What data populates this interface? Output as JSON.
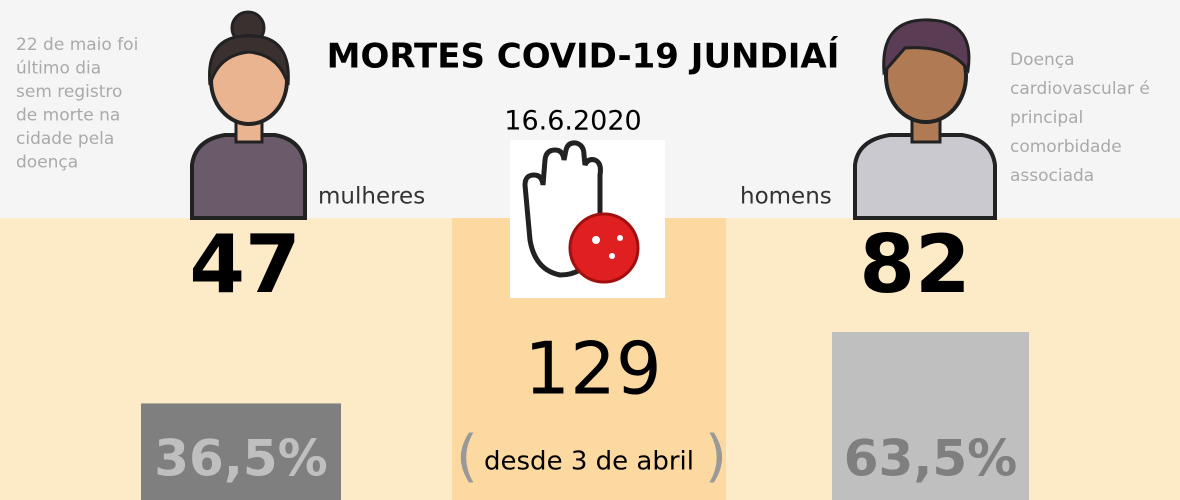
{
  "title": "MORTES COVID-19 JUNDIAÍ",
  "date": "16.6.2020",
  "note_left": [
    "22 de maio foi",
    "último dia",
    "sem registro",
    "de morte na",
    "cidade pela",
    "doença"
  ],
  "note_right": [
    "Doença",
    "cardiovascular é",
    "principal",
    "comorbidade",
    "associada"
  ],
  "women": {
    "label": "mulheres",
    "count": 47
  },
  "men": {
    "label": "homens",
    "count": 82
  },
  "total": 129,
  "since": "desde 3 de abril",
  "shares": {
    "values": [
      36.5,
      63.5
    ],
    "value_labels": [
      "36,5%",
      "63,5%"
    ],
    "colors": [
      "#7f7f7f",
      "#bfbfbf"
    ],
    "label_colors": [
      "#bfbfbf",
      "#7f7f7f"
    ]
  }
}
